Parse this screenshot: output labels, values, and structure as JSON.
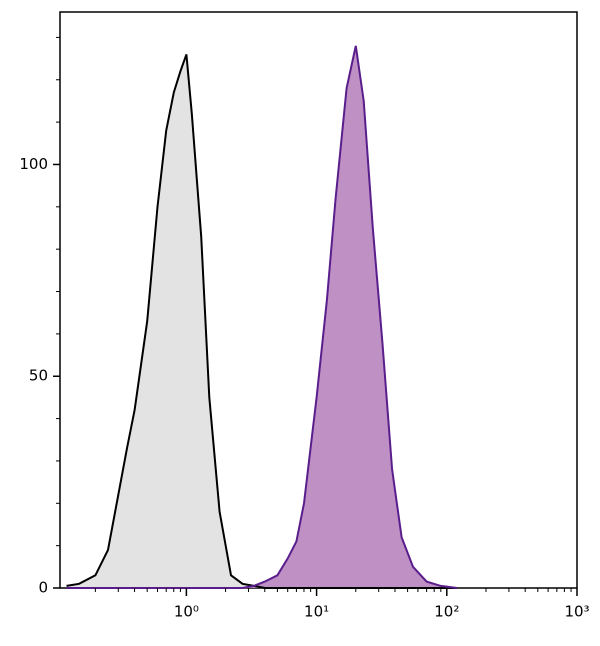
{
  "chart_data": {
    "type": "histogram-area",
    "x": [
      0.12,
      0.15,
      0.2,
      0.25,
      0.3,
      0.35,
      0.4,
      0.5,
      0.6,
      0.7,
      0.8,
      0.9,
      1.0,
      1.1,
      1.3,
      1.5,
      1.8,
      2.2,
      2.7,
      3.3,
      4,
      5,
      6,
      7,
      8,
      10,
      12,
      14,
      17,
      20,
      23,
      27,
      32,
      38,
      45,
      55,
      70,
      90,
      120
    ],
    "series": [
      {
        "color": "#000000",
        "fill": "#e0e0e0",
        "values": [
          0.5,
          1,
          3,
          9,
          22,
          33,
          42,
          63,
          90,
          108,
          117,
          122,
          126,
          112,
          83,
          45,
          18,
          3,
          1,
          0.5,
          0,
          0,
          0,
          0,
          0,
          0,
          0,
          0,
          0,
          0,
          0,
          0,
          0,
          0,
          0,
          0,
          0,
          0,
          0
        ]
      },
      {
        "color": "#5a1e8c",
        "fill": "#b784be",
        "values": [
          0,
          0,
          0,
          0,
          0,
          0,
          0,
          0,
          0,
          0,
          0,
          0,
          0,
          0,
          0,
          0,
          0,
          0,
          0,
          0.5,
          1.5,
          3,
          7,
          11,
          20,
          45,
          68,
          92,
          118,
          128,
          115,
          85,
          58,
          28,
          12,
          5,
          1.5,
          0.5,
          0
        ]
      }
    ],
    "xscale": "log",
    "xlim": [
      0.107,
      1000
    ],
    "xticks": [
      {
        "value": 1,
        "label": "10⁰"
      },
      {
        "value": 10,
        "label": "10¹"
      },
      {
        "value": 100,
        "label": "10²"
      },
      {
        "value": 1000,
        "label": "10³"
      }
    ],
    "xminor_ticks": [
      0.2,
      0.3,
      0.4,
      0.5,
      0.6,
      0.7,
      0.8,
      0.9,
      2,
      3,
      4,
      5,
      6,
      7,
      8,
      9,
      20,
      30,
      40,
      50,
      60,
      70,
      80,
      90,
      200,
      300,
      400,
      500,
      600,
      700,
      800,
      900
    ],
    "ylim": [
      0,
      136
    ],
    "yticks": [
      0,
      50,
      100
    ],
    "yminor_ticks": [
      10,
      20,
      30,
      40,
      60,
      70,
      80,
      90,
      110,
      120,
      130
    ]
  }
}
